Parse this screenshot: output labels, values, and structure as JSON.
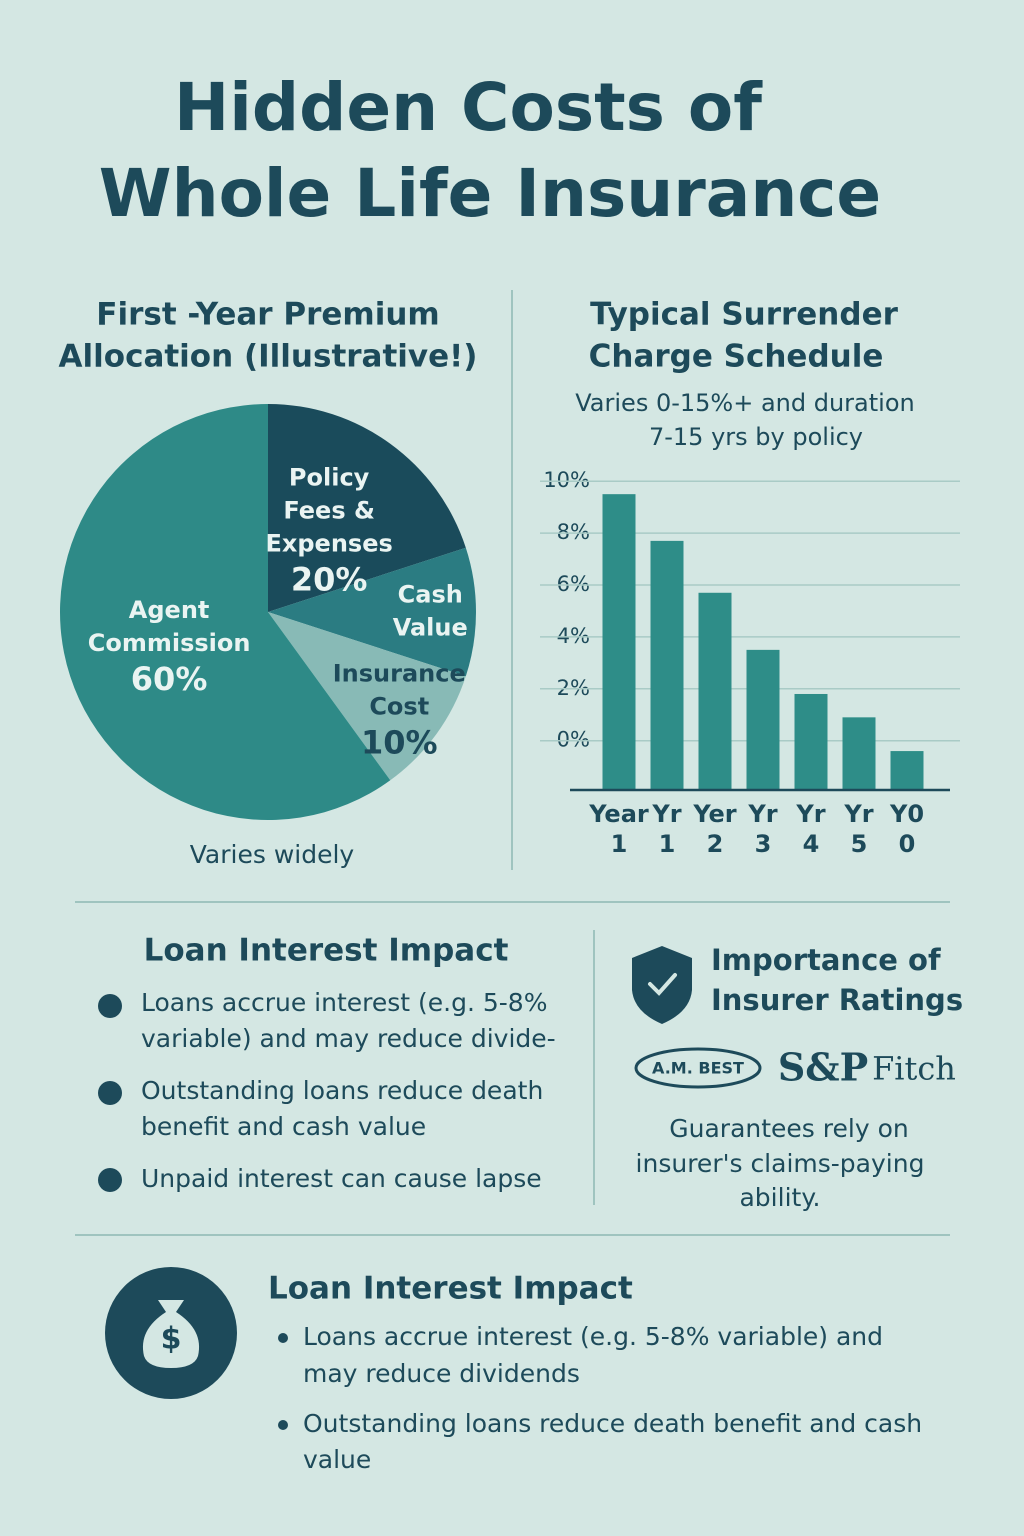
{
  "title": [
    "Hidden Costs of",
    "Whole Life Insurance"
  ],
  "chart_data": [
    {
      "type": "pie",
      "title": [
        "First -Year Premium",
        "Allocation (Illustrative!)"
      ],
      "categories": [
        [
          "Policy",
          "Fees &",
          "Expenses"
        ],
        [
          "Cash",
          "Value"
        ],
        [
          "Insurance",
          "Cost"
        ],
        [
          "Agent",
          "Commission"
        ]
      ],
      "values": [
        20,
        10,
        10,
        60
      ],
      "value_labels": [
        "20%",
        null,
        "10%",
        "60%"
      ],
      "colors": [
        "#1a4b5b",
        "#2b7c82",
        "#88bab6",
        "#2e8a87"
      ],
      "note": "Varies widely"
    },
    {
      "type": "bar",
      "title": [
        "Typical Surrender",
        "Charge Schedule"
      ],
      "subtitle": [
        "Varies 0-15%+ and duration",
        "7-15 yrs by policy"
      ],
      "categories": [
        "Year 1",
        "Yr 1",
        "Yer 2",
        "Yr 3",
        "Yr 4",
        "Yr 5",
        "Y0 0"
      ],
      "values": [
        9.5,
        7.7,
        5.7,
        3.5,
        1.8,
        0.9,
        -0.4
      ],
      "color": "#2e8d88",
      "ylim": [
        -1.9,
        10.2
      ],
      "yticks": [
        {
          "value": 10,
          "label": "10%"
        },
        {
          "value": 8,
          "label": "8%"
        },
        {
          "value": 6,
          "label": "6%"
        },
        {
          "value": 4,
          "label": "4%"
        },
        {
          "value": 2,
          "label": "2%"
        },
        {
          "value": 0,
          "label": "0%"
        }
      ],
      "grid": true
    }
  ],
  "loan_section": {
    "title": "Loan Interest Impact",
    "bullets": [
      [
        "Loans accrue interest (e.g. 5-8%",
        "variable) and may reduce divide-"
      ],
      [
        "Outstanding loans reduce death",
        "benefit and cash value"
      ],
      [
        "Unpaid interest can cause lapse"
      ]
    ]
  },
  "ratings_section": {
    "title": [
      "Importance of",
      "Insurer Ratings"
    ],
    "logos": [
      "A.M. BEST",
      "S&P",
      "Fitch"
    ],
    "text": [
      "Guarantees rely on",
      "insurer's claims-paying",
      "ability."
    ]
  },
  "bottom_section": {
    "title": "Loan Interest Impact",
    "icon": "$",
    "bullets": [
      [
        "Loans accrue interest (e.g. 5-8% variable) and",
        "may reduce dividends"
      ],
      [
        "Outstanding loans reduce death benefit and cash",
        "value"
      ]
    ]
  }
}
